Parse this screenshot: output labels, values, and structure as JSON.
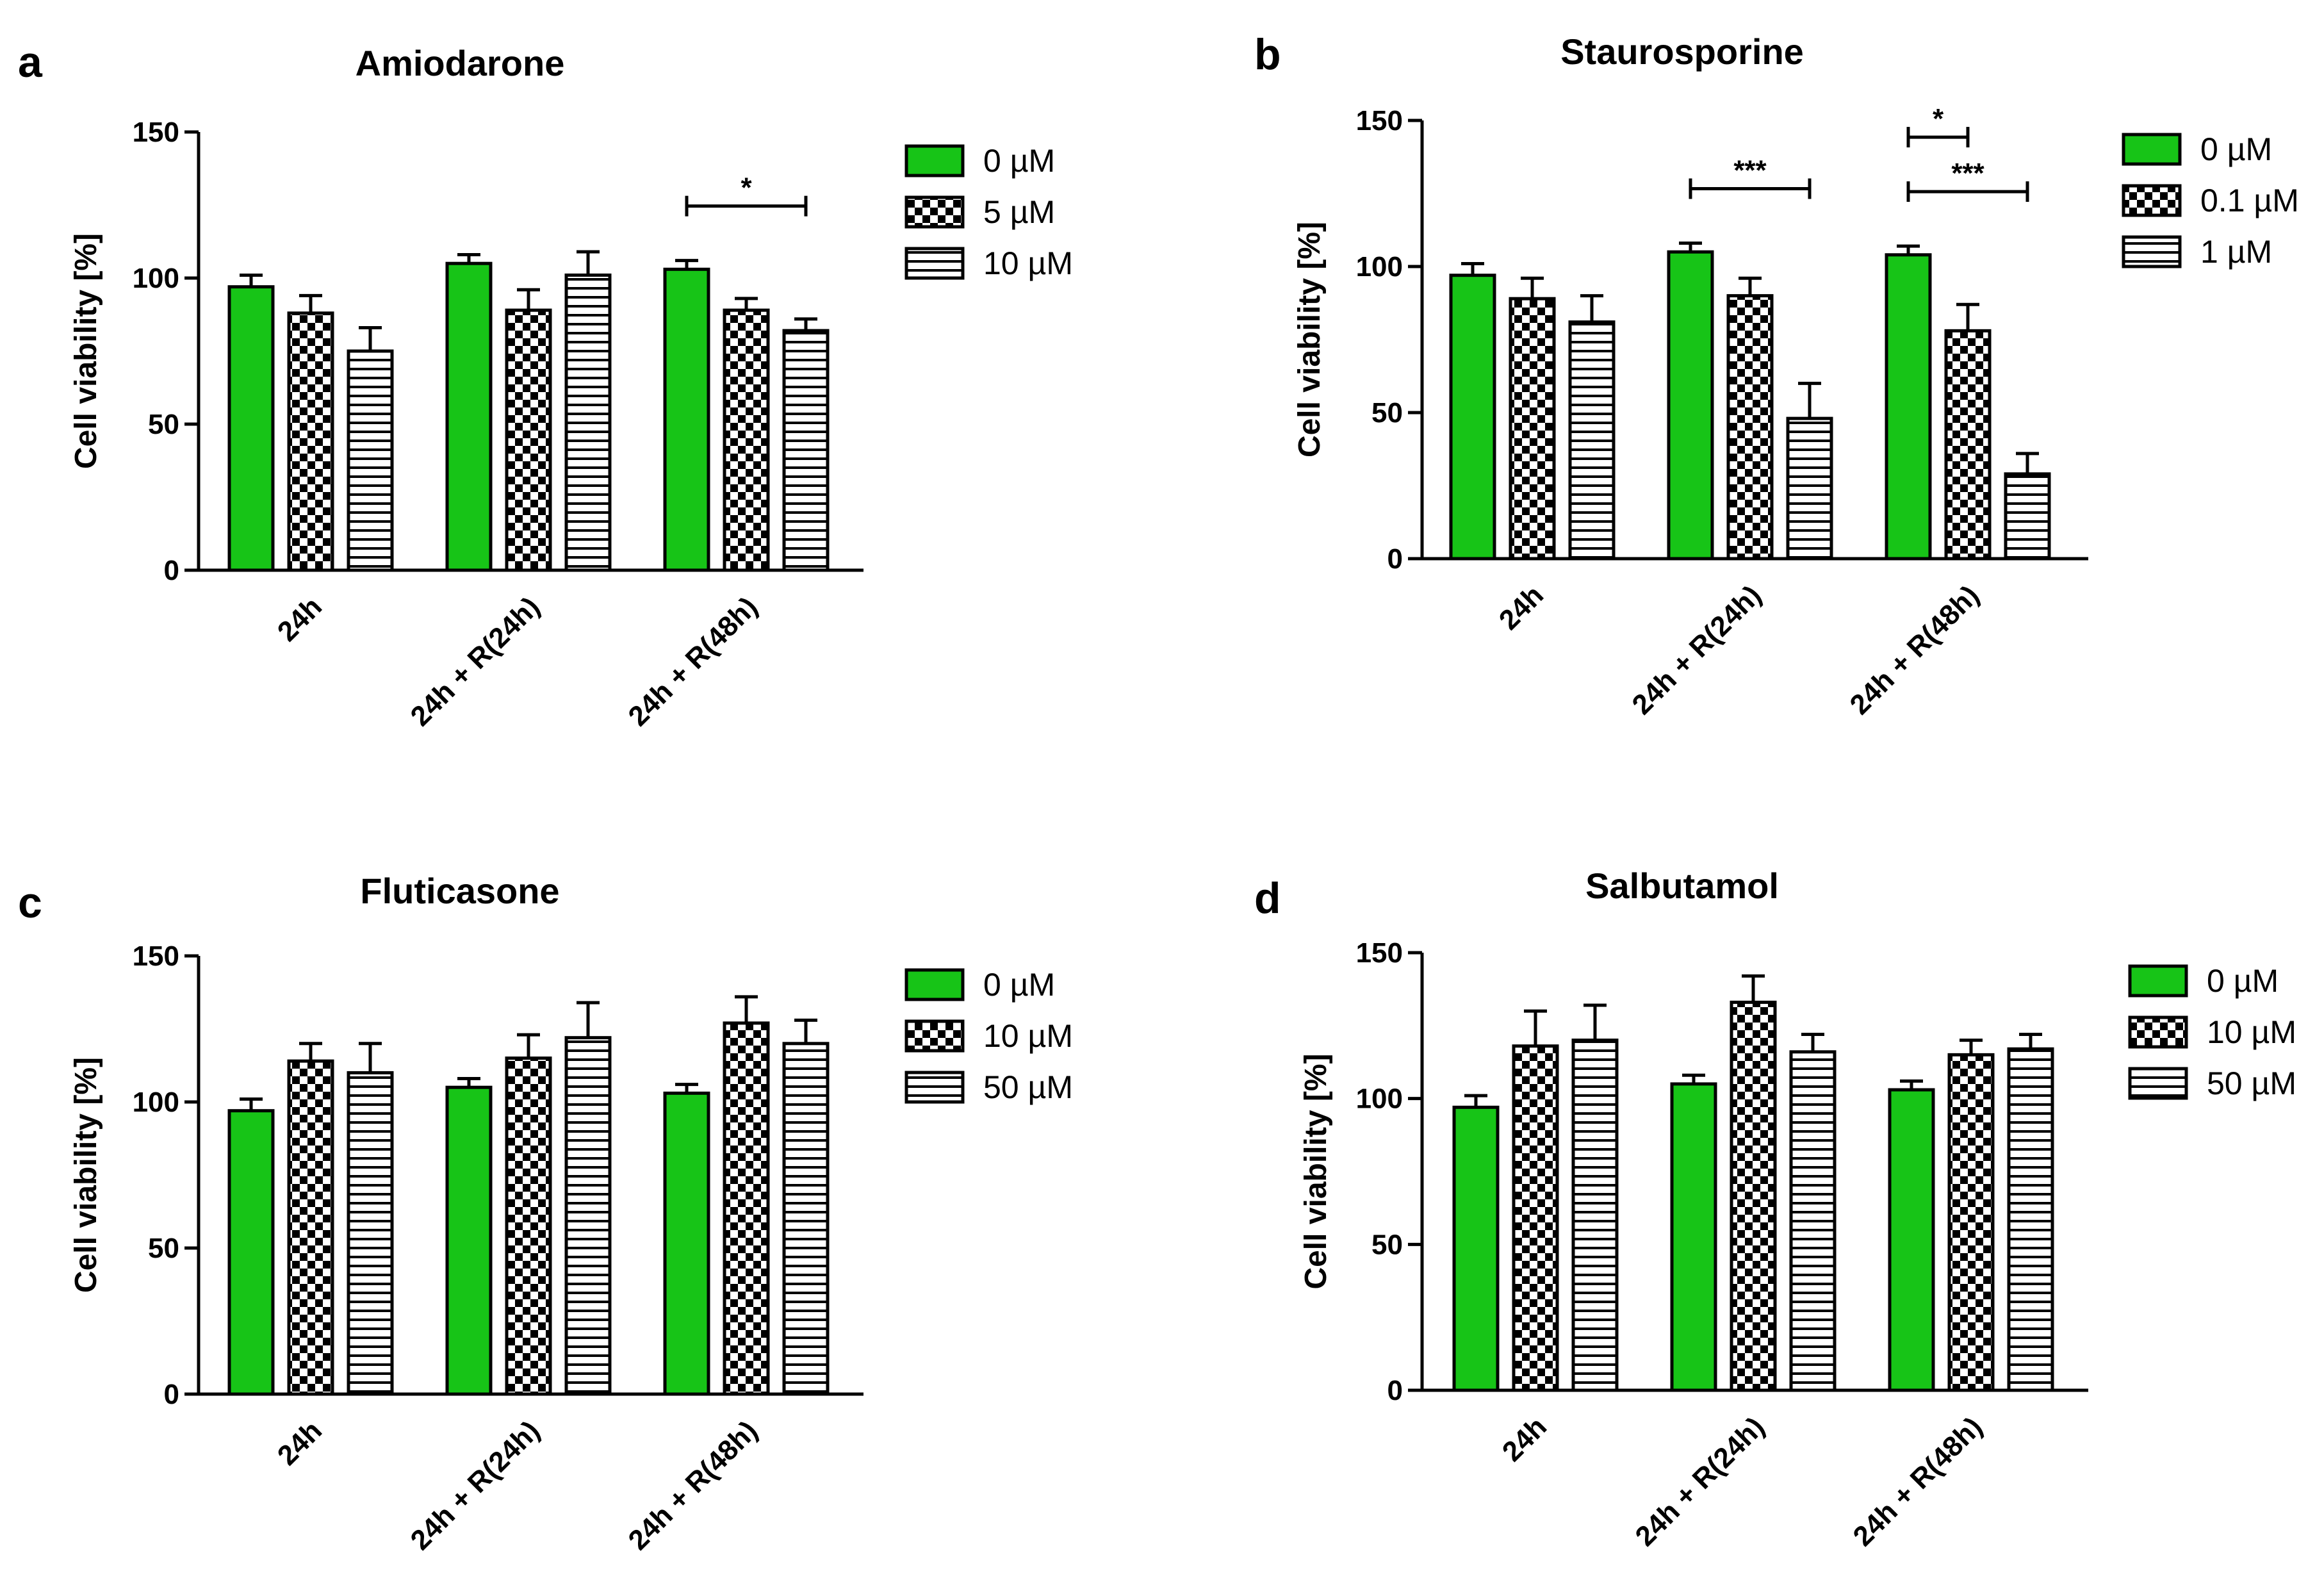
{
  "chart_data": [
    {
      "panel_letter": "a",
      "type": "bar",
      "title": "Amiodarone",
      "ylabel": "Cell viability [%]",
      "ylim": [
        0,
        150
      ],
      "yticks": [
        "0",
        "50",
        "100",
        "150"
      ],
      "categories": [
        "24h",
        "24h + R(24h)",
        "24h + R(48h)"
      ],
      "series": [
        {
          "name": "0 µM",
          "values": [
            97,
            105,
            103
          ],
          "errors": [
            4,
            3,
            3
          ],
          "pattern": "solid-green"
        },
        {
          "name": "5 µM",
          "values": [
            88,
            89,
            89
          ],
          "errors": [
            6,
            7,
            4
          ],
          "pattern": "checker"
        },
        {
          "name": "10 µM",
          "values": [
            75,
            101,
            82
          ],
          "errors": [
            8,
            8,
            4
          ],
          "pattern": "horizontal-stripes"
        }
      ],
      "significance": [
        {
          "category": "24h + R(48h)",
          "from_series": 0,
          "to_series": 2,
          "label": "*"
        }
      ],
      "legend_position": "right",
      "grid": false
    },
    {
      "panel_letter": "b",
      "type": "bar",
      "title": "Staurosporine",
      "ylabel": "Cell viability [%]",
      "ylim": [
        0,
        150
      ],
      "yticks": [
        "0",
        "50",
        "100",
        "150"
      ],
      "categories": [
        "24h",
        "24h + R(24h)",
        "24h + R(48h)"
      ],
      "series": [
        {
          "name": "0 µM",
          "values": [
            97,
            105,
            104
          ],
          "errors": [
            4,
            3,
            3
          ],
          "pattern": "solid-green"
        },
        {
          "name": "0.1 µM",
          "values": [
            89,
            90,
            78
          ],
          "errors": [
            7,
            6,
            9
          ],
          "pattern": "checker"
        },
        {
          "name": "1 µM",
          "values": [
            81,
            48,
            29
          ],
          "errors": [
            9,
            12,
            7
          ],
          "pattern": "horizontal-stripes"
        }
      ],
      "significance": [
        {
          "category": "24h + R(24h)",
          "from_series": 0,
          "to_series": 2,
          "label": "***"
        },
        {
          "category": "24h + R(48h)",
          "from_series": 0,
          "to_series": 1,
          "label": "*"
        },
        {
          "category": "24h + R(48h)",
          "from_series": 0,
          "to_series": 2,
          "label": "***"
        }
      ],
      "legend_position": "right",
      "grid": false
    },
    {
      "panel_letter": "c",
      "type": "bar",
      "title": "Fluticasone",
      "ylabel": "Cell viability [%]",
      "ylim": [
        0,
        150
      ],
      "yticks": [
        "0",
        "50",
        "100",
        "150"
      ],
      "categories": [
        "24h",
        "24h + R(24h)",
        "24h + R(48h)"
      ],
      "series": [
        {
          "name": "0 µM",
          "values": [
            97,
            105,
            103
          ],
          "errors": [
            4,
            3,
            3
          ],
          "pattern": "solid-green"
        },
        {
          "name": "10 µM",
          "values": [
            114,
            115,
            127
          ],
          "errors": [
            6,
            8,
            9
          ],
          "pattern": "checker"
        },
        {
          "name": "50 µM",
          "values": [
            110,
            122,
            120
          ],
          "errors": [
            10,
            12,
            8
          ],
          "pattern": "horizontal-stripes"
        }
      ],
      "significance": [],
      "legend_position": "right",
      "grid": false
    },
    {
      "panel_letter": "d",
      "type": "bar",
      "title": "Salbutamol",
      "ylabel": "Cell viability [%]",
      "ylim": [
        0,
        150
      ],
      "yticks": [
        "0",
        "50",
        "100",
        "150"
      ],
      "categories": [
        "24h",
        "24h + R(24h)",
        "24h + R(48h)"
      ],
      "series": [
        {
          "name": "0 µM",
          "values": [
            97,
            105,
            103
          ],
          "errors": [
            4,
            3,
            3
          ],
          "pattern": "solid-green"
        },
        {
          "name": "10 µM",
          "values": [
            118,
            133,
            115
          ],
          "errors": [
            12,
            9,
            5
          ],
          "pattern": "checker"
        },
        {
          "name": "50 µM",
          "values": [
            120,
            116,
            117
          ],
          "errors": [
            12,
            6,
            5
          ],
          "pattern": "horizontal-stripes"
        }
      ],
      "significance": [],
      "legend_position": "right",
      "grid": false
    }
  ],
  "colors": {
    "bar_green": "#17c417",
    "stroke": "#000000",
    "background": "#ffffff"
  }
}
